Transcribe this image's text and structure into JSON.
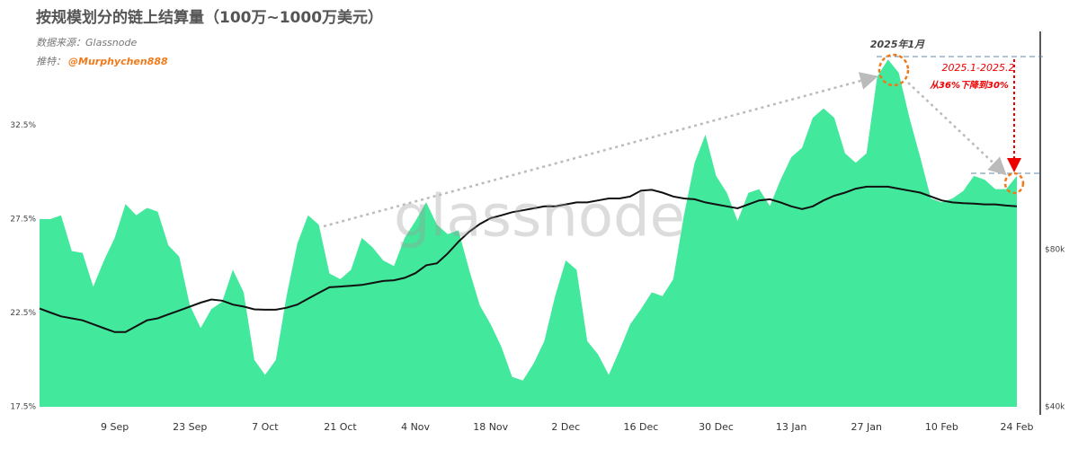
{
  "chart_data": {
    "type": "area",
    "title": "按规模划分的链上结算量（100万~1000万美元）",
    "source": "数据来源：Glassnode",
    "credit_label": "推特：",
    "credit_handle": "@Murphychen888",
    "watermark": "glassnode",
    "annotations": [
      "2025年1月",
      "2025.1-2025.2",
      "从36%下降到30%"
    ],
    "categories": [
      null,
      null,
      null,
      null,
      null,
      null,
      null,
      "9 Sep",
      null,
      null,
      null,
      null,
      null,
      null,
      "23 Sep",
      null,
      null,
      null,
      null,
      null,
      null,
      "7 Oct",
      null,
      null,
      null,
      null,
      null,
      null,
      "21 Oct",
      null,
      null,
      null,
      null,
      null,
      null,
      "4 Nov",
      null,
      null,
      null,
      null,
      null,
      null,
      "18 Nov",
      null,
      null,
      null,
      null,
      null,
      null,
      "2 Dec",
      null,
      null,
      null,
      null,
      null,
      null,
      "16 Dec",
      null,
      null,
      null,
      null,
      null,
      null,
      "30 Dec",
      null,
      null,
      null,
      null,
      null,
      null,
      "13 Jan",
      null,
      null,
      null,
      null,
      null,
      null,
      "27 Jan",
      null,
      null,
      null,
      null,
      null,
      null,
      "10 Feb",
      null,
      null,
      null,
      null,
      null,
      null,
      "24 Feb"
    ],
    "series": [
      {
        "type": "area",
        "color": "#42e89b",
        "values": [
          27.5,
          27.5,
          27.7,
          25.8,
          25.7,
          23.9,
          25.3,
          26.5,
          28.3,
          27.7,
          28.1,
          27.9,
          26.1,
          25.5,
          22.9,
          21.7,
          22.7,
          23.1,
          24.8,
          23.6,
          20.0,
          19.2,
          20.0,
          23.4,
          26.2,
          27.7,
          27.2,
          24.6,
          24.3,
          24.8,
          26.5,
          26.0,
          25.3,
          25.0,
          26.5,
          27.4,
          28.4,
          27.2,
          26.7,
          26.9,
          24.8,
          22.9,
          21.9,
          20.7,
          19.1,
          18.9,
          19.8,
          21.0,
          23.4,
          25.3,
          24.8,
          21.0,
          20.3,
          19.2,
          20.5,
          21.9,
          22.7,
          23.6,
          23.4,
          24.3,
          27.7,
          30.5,
          32.0,
          29.8,
          28.9,
          27.4,
          28.9,
          29.1,
          28.2,
          29.6,
          30.8,
          31.3,
          32.9,
          33.4,
          32.9,
          31.0,
          30.5,
          31.0,
          35.1,
          36.0,
          35.3,
          32.9,
          30.8,
          28.6,
          28.4,
          28.6,
          29.0,
          29.8,
          29.6,
          29.1,
          29.1,
          29.8
        ]
      },
      {
        "type": "line",
        "axis": "y2",
        "color": "#111111",
        "values": [
          65000,
          64000,
          63000,
          62500,
          62000,
          61000,
          60000,
          59000,
          59000,
          60500,
          62000,
          62500,
          63500,
          64500,
          65500,
          66500,
          67300,
          67000,
          66000,
          65500,
          64800,
          64700,
          64700,
          65200,
          66000,
          67500,
          69000,
          70400,
          70600,
          70800,
          71000,
          71500,
          72000,
          72200,
          72800,
          74000,
          76000,
          76500,
          79000,
          82000,
          84500,
          86500,
          88000,
          88700,
          89500,
          90000,
          90500,
          91000,
          91000,
          91500,
          92000,
          92000,
          92500,
          93000,
          93000,
          93500,
          95000,
          95200,
          94500,
          93500,
          93000,
          92800,
          92000,
          91500,
          91000,
          90500,
          91500,
          92500,
          92800,
          92000,
          91000,
          90300,
          91000,
          92500,
          93700,
          94500,
          95500,
          96000,
          96000,
          96000,
          95500,
          95000,
          94500,
          93500,
          92500,
          92000,
          91800,
          91700,
          91500,
          91500,
          91200,
          91000
        ]
      }
    ],
    "ylim": [
      17.5,
      37.5
    ],
    "yticks": [
      {
        "value": 17.5,
        "label": "17.5%"
      },
      {
        "value": 22.5,
        "label": "22.5%"
      },
      {
        "value": 27.5,
        "label": "27.5%"
      },
      {
        "value": 32.5,
        "label": "32.5%"
      }
    ],
    "y2lim": [
      40000,
      135500
    ],
    "y2ticks": [
      {
        "value": 40000,
        "label": "$40k"
      },
      {
        "value": 80000,
        "label": "$80k"
      }
    ]
  }
}
